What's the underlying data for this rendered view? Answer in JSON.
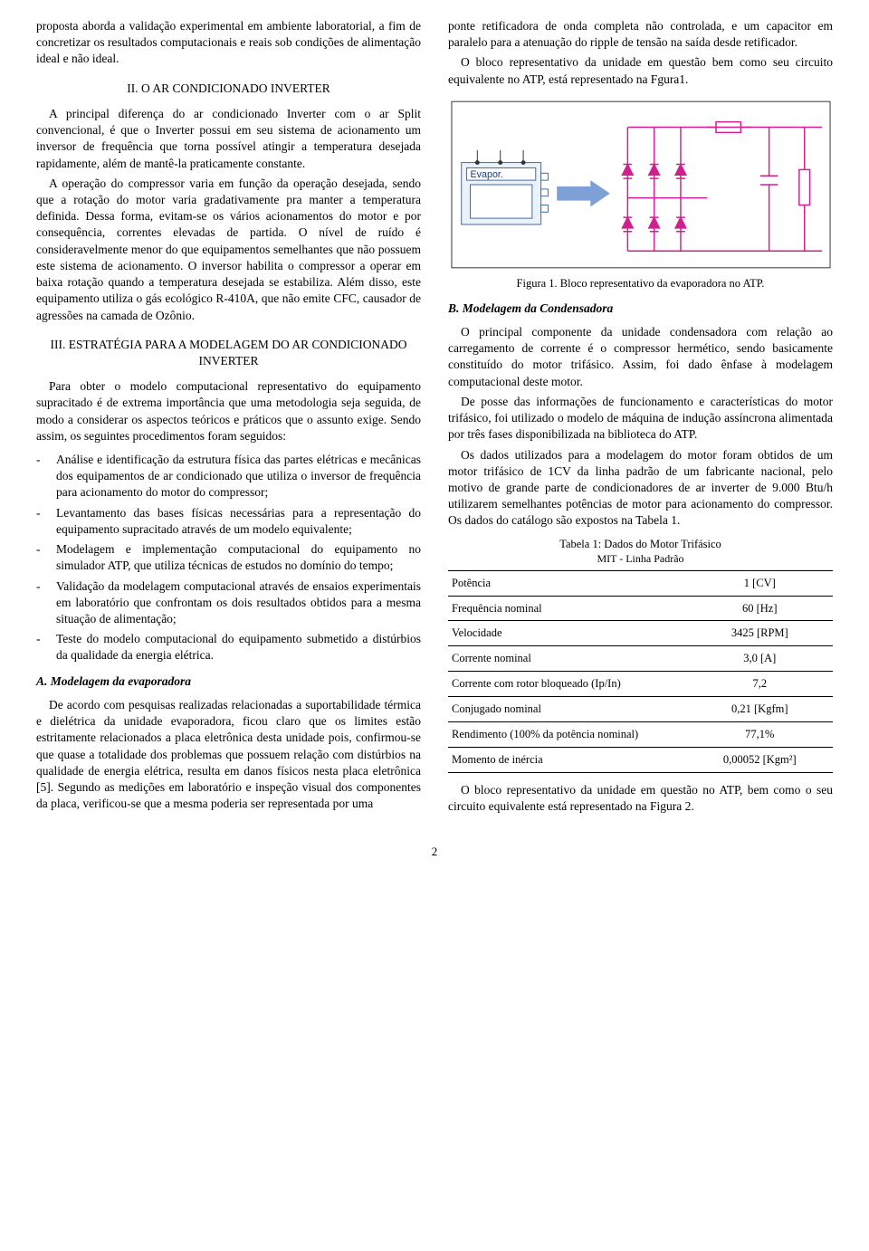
{
  "left": {
    "intro": "proposta aborda a validação experimental em ambiente laboratorial, a fim de concretizar os resultados computacionais e reais sob condições de alimentação ideal e não ideal.",
    "sec2_title": "II. O AR CONDICIONADO INVERTER",
    "sec2_p1": "A principal diferença do ar condicionado Inverter com o ar Split convencional, é que o Inverter possui em seu sistema de acionamento um inversor de frequência que torna possível atingir a temperatura desejada rapidamente, além de mantê-la praticamente constante.",
    "sec2_p2": "A operação do compressor varia em função da operação desejada, sendo que a rotação do motor varia gradativamente pra manter a temperatura definida. Dessa forma, evitam-se os vários acionamentos do motor e por consequência, correntes elevadas de partida. O nível de ruído é consideravelmente menor do que equipamentos semelhantes que não possuem este sistema de acionamento. O inversor habilita o compressor a operar em baixa rotação quando a temperatura desejada se estabiliza. Além disso, este equipamento utiliza o gás ecológico R-410A, que não emite CFC, causador de agressões na camada de Ozônio.",
    "sec3_title": "III. ESTRATÉGIA PARA A MODELAGEM DO AR CONDICIONADO INVERTER",
    "sec3_p1": "Para obter o modelo computacional representativo do equipamento supracitado é de extrema importância que uma metodologia seja seguida, de modo a considerar os aspectos teóricos e práticos que o assunto exige. Sendo assim, os seguintes procedimentos foram seguidos:",
    "bullets": [
      "Análise e identificação da estrutura física das partes elétricas e mecânicas dos equipamentos de ar condicionado que utiliza o inversor de frequência para acionamento do motor do compressor;",
      "Levantamento das bases físicas necessárias para a representação do equipamento supracitado através de um modelo equivalente;",
      "Modelagem e implementação computacional do equipamento no simulador ATP, que utiliza técnicas de estudos no domínio do tempo;",
      "Validação da modelagem computacional através de ensaios experimentais em laboratório que confrontam os dois resultados obtidos para a mesma situação de alimentação;",
      "Teste do modelo computacional do equipamento submetido a distúrbios da qualidade da energia elétrica."
    ],
    "subA_title": "A. Modelagem da evaporadora",
    "subA_p1": "De acordo com pesquisas realizadas relacionadas a suportabilidade térmica e dielétrica da unidade evaporadora, ficou claro que os limites estão estritamente relacionados a placa eletrônica desta unidade pois, confirmou-se que quase a totalidade dos problemas que possuem relação com distúrbios na qualidade de energia elétrica, resulta em danos físicos nesta placa eletrônica [5]. Segundo as medições em laboratório e inspeção visual dos componentes da placa, verificou-se que a mesma poderia ser representada por uma"
  },
  "right": {
    "p_bridge1": "ponte retificadora de onda completa não controlada, e um capacitor em paralelo para a atenuação do ripple de tensão na saída desde retificador.",
    "p_bridge2": "O bloco representativo da unidade em questão bem como seu circuito equivalente no ATP, está representado na Fgura1.",
    "fig1_caption": "Figura 1. Bloco representativo da evaporadora no ATP.",
    "subB_title": "B. Modelagem da Condensadora",
    "subB_p1": "O principal componente da unidade condensadora com relação ao carregamento de corrente é o compressor hermético, sendo basicamente constituído do motor trifásico. Assim, foi dado ênfase à modelagem computacional deste motor.",
    "subB_p2": "De posse das informações de funcionamento e características do motor trifásico, foi utilizado o modelo de máquina de indução assíncrona alimentada por três fases disponibilizada na biblioteca do ATP.",
    "subB_p3": "Os dados utilizados para a modelagem do motor foram obtidos de um motor trifásico de 1CV da linha padrão de um fabricante nacional, pelo motivo de grande parte de condicionadores de ar inverter de 9.000 Btu/h utilizarem semelhantes potências de motor para acionamento do compressor. Os dados do catálogo são expostos na Tabela 1.",
    "table": {
      "caption": "Tabela 1: Dados do Motor Trifásico",
      "subcaption": "MIT - Linha Padrão",
      "rows": [
        {
          "label": "Potência",
          "value": "1 [CV]"
        },
        {
          "label": "Frequência nominal",
          "value": "60 [Hz]"
        },
        {
          "label": "Velocidade",
          "value": "3425 [RPM]"
        },
        {
          "label": "Corrente nominal",
          "value": "3,0 [A]"
        },
        {
          "label": "Corrente com rotor bloqueado (Ip/In)",
          "value": "7,2"
        },
        {
          "label": "Conjugado nominal",
          "value": "0,21 [Kgfm]"
        },
        {
          "label": "Rendimento (100% da potência nominal)",
          "value": "77,1%"
        },
        {
          "label": "Momento de inércia",
          "value": "0,00052 [Kgm²]"
        }
      ]
    },
    "p_after_table": "O bloco representativo da unidade em questão no ATP, bem como o seu circuito equivalente está representado na Figura 2.",
    "figure1": {
      "evapor_label": "Evapor.",
      "circuit_color": "#d02090",
      "arrow_color": "#7da1d6",
      "background": "#ffffff",
      "border_color": "#333333"
    }
  },
  "page_number": "2"
}
